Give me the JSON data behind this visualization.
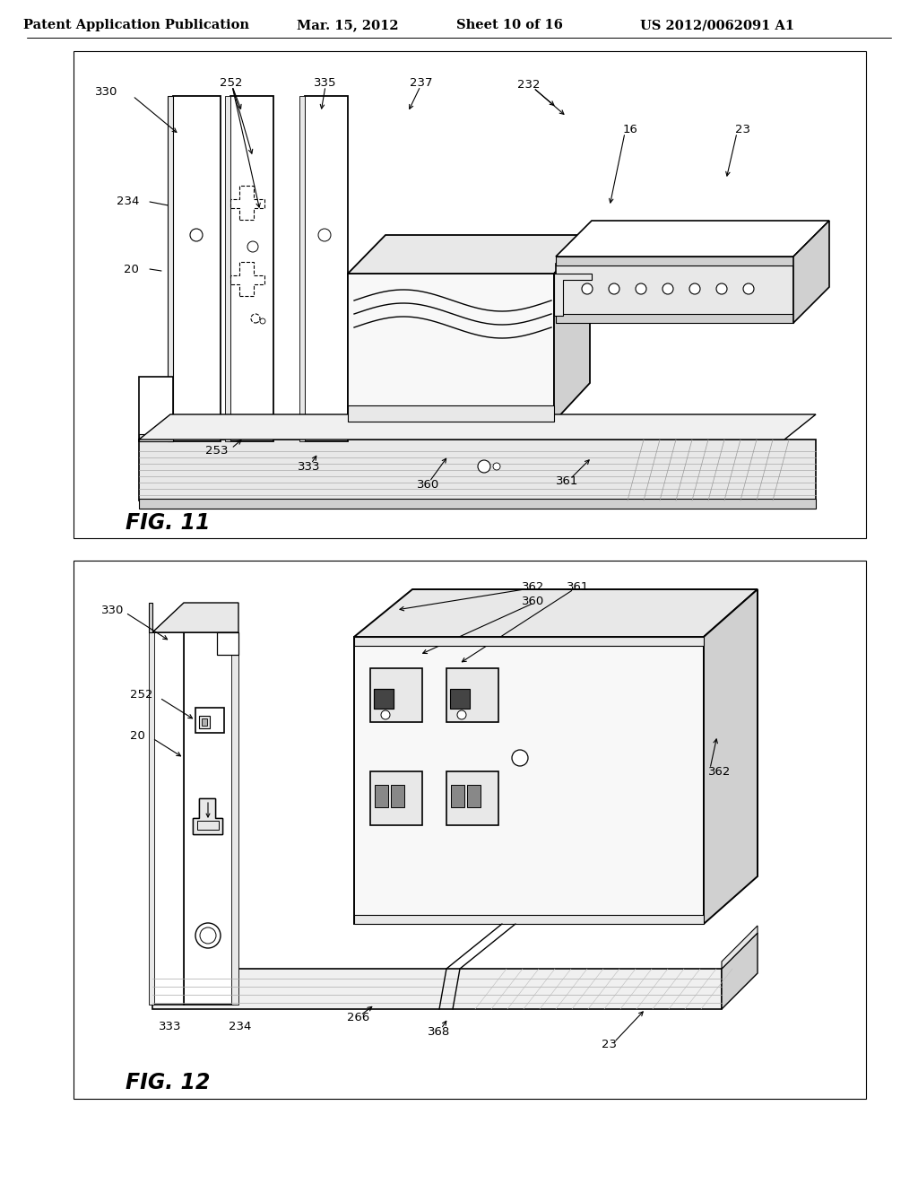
{
  "background_color": "#ffffff",
  "header_text": "Patent Application Publication",
  "header_date": "Mar. 15, 2012",
  "header_sheet": "Sheet 10 of 16",
  "header_patent": "US 2012/0062091 A1",
  "fig11_label": "FIG. 11",
  "fig12_label": "FIG. 12",
  "line_color": "#000000",
  "fig_label_fontsize": 17,
  "header_fontsize": 10.5,
  "ref_fontsize": 9.5,
  "white": "#ffffff",
  "light_gray": "#e8e8e8",
  "mid_gray": "#d0d0d0",
  "dark_gray": "#b0b0b0"
}
